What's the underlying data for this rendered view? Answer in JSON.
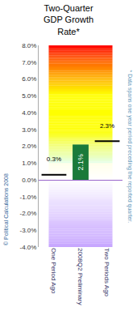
{
  "chart_data": {
    "type": "bar",
    "title": "Two-Quarter\nGDP Growth\nRate*",
    "categories": [
      "One Period Ago",
      "2008Q2 Preliminary",
      "Two Periods Ago"
    ],
    "series": [
      {
        "type": "bar",
        "color": "#1a7a3a",
        "values": [
          null,
          2.1,
          null
        ],
        "value_labels": [
          null,
          "2.1%",
          null
        ]
      },
      {
        "type": "scatter",
        "marker": "line",
        "color": "#000000",
        "values": [
          0.3,
          null,
          2.3
        ],
        "value_labels": [
          "0.3%",
          null,
          "2.3%"
        ]
      }
    ],
    "ylim": [
      -4.0,
      8.0
    ],
    "yticks": [
      {
        "value": -4.0,
        "label": "-4.0%"
      },
      {
        "value": -3.0,
        "label": "-3.0%"
      },
      {
        "value": -2.0,
        "label": "-2.0%"
      },
      {
        "value": -1.0,
        "label": "-1.0%"
      },
      {
        "value": 0.0,
        "label": "0.0%"
      },
      {
        "value": 1.0,
        "label": "1.0%"
      },
      {
        "value": 2.0,
        "label": "2.0%"
      },
      {
        "value": 3.0,
        "label": "3.0%"
      },
      {
        "value": 4.0,
        "label": "4.0%"
      },
      {
        "value": 5.0,
        "label": "5.0%"
      },
      {
        "value": 6.0,
        "label": "6.0%"
      },
      {
        "value": 7.0,
        "label": "7.0%"
      },
      {
        "value": 8.0,
        "label": "8.0%"
      }
    ],
    "grid": false,
    "data_labels": true,
    "annotations": [
      "* Data spans one year period preceding the reported quarter.",
      "© Political Calculations 2008"
    ]
  }
}
